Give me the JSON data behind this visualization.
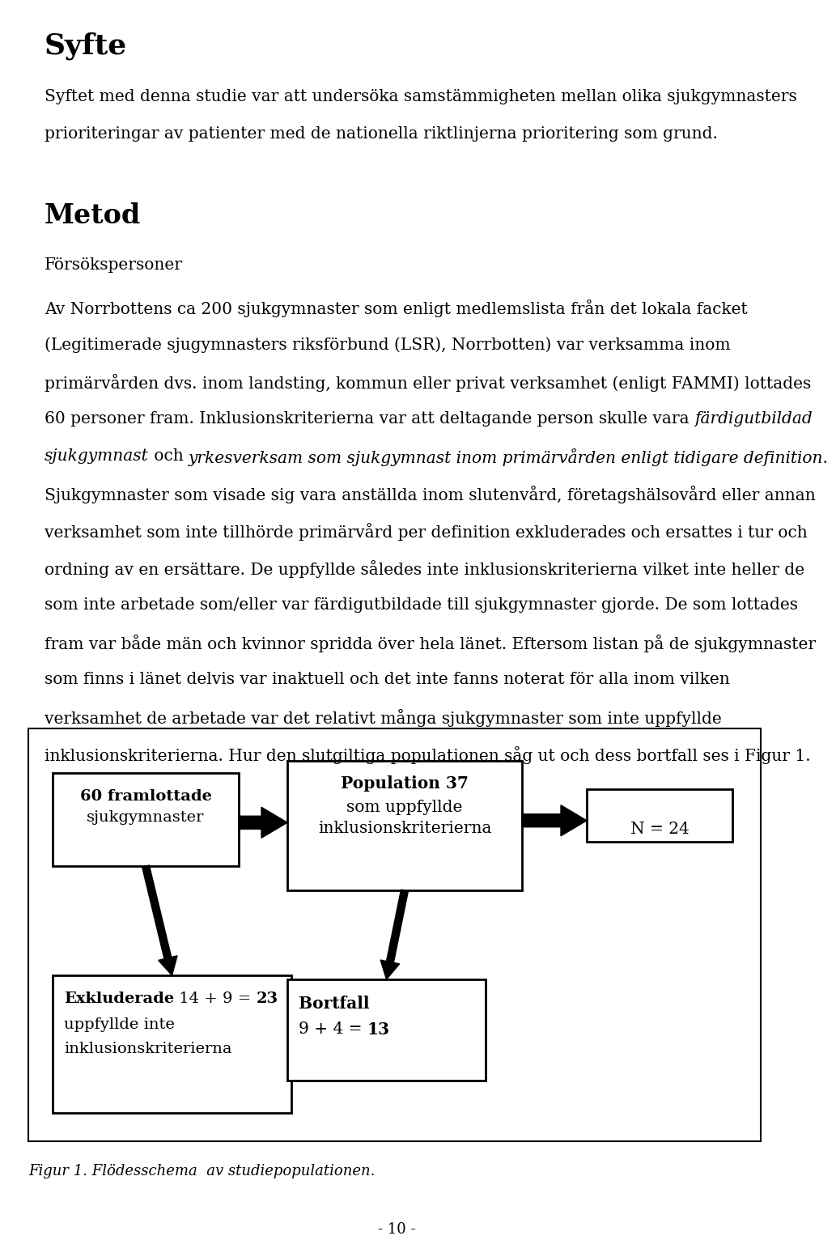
{
  "title_syfte": "Syfte",
  "title_metod": "Metod",
  "subtitle_metod": "Försökspersoner",
  "box1_line1": "60 framlottade",
  "box1_line2": "sjukgymnaster",
  "box2_line1": "Population 37",
  "box2_line2": "som uppfyllde",
  "box2_line3": "inklusionskriterierna",
  "box3_line1": "N = 24",
  "box4_bold": "Exkluderade",
  "box4_rest": " 14 + 9 = ",
  "box4_bold2": "23",
  "box4_line2": "uppfyllde inte",
  "box4_line3": "inklusionskriterierna",
  "box5_bold": "Bortfall",
  "box5_line2_pre": "9 + 4 = ",
  "box5_line2_bold": "13",
  "fig_caption": "Figur 1. Flödesschema  av studiepopulationen.",
  "page_num": "- 10 -",
  "bg_color": "#ffffff",
  "text_color": "#000000",
  "syfte_para_lines": [
    "Syftet med denna studie var att undersöka samstämmigheten mellan olika sjukgymnasters",
    "prioriteringar av patienter med de nationella riktlinjerna prioritering som grund."
  ],
  "metod_para_lines": [
    [
      "plain",
      "Av Norrbottens ca 200 sjukgymnaster som enligt medlemslista från det lokala facket"
    ],
    [
      "plain",
      "(Legitimerade sjugymnasters riksförbund (LSR), Norrbotten) var verksamma inom"
    ],
    [
      "plain",
      "primärvården dvs. inom landsting, kommun eller privat verksamhet (enligt FAMMI) lottades"
    ],
    [
      "mixed",
      "60 personer fram. Inklusionskriterierna var att deltagande person skulle vara ",
      "italic",
      "färdigutbildad"
    ],
    [
      "mixed_italic",
      "sjukgymnast",
      "plain",
      " och ",
      "italic",
      "yrkesverksam som sjukgymnast inom primärvården enligt tidigare definition."
    ],
    [
      "plain",
      "Sjukgymnaster som visade sig vara anställda inom slutenvård, företagshälsovård eller annan"
    ],
    [
      "plain",
      "verksamhet som inte tillhörde primärvård per definition exkluderades och ersattes i tur och"
    ],
    [
      "plain",
      "ordning av en ersättare. De uppfyllde således inte inklusionskriterierna vilket inte heller de"
    ],
    [
      "plain",
      "som inte arbetade som/eller var färdigutbildade till sjukgymnaster gjorde. De som lottades"
    ],
    [
      "plain",
      "fram var både män och kvinnor spridda över hela länet. Eftersom listan på de sjukgymnaster"
    ],
    [
      "plain",
      "som finns i länet delvis var inaktuell och det inte fanns noterat för alla inom vilken"
    ],
    [
      "plain",
      "verksamhet de arbetade var det relativt många sjukgymnaster som inte uppfyllde"
    ],
    [
      "plain",
      "inklusionskriterierna. Hur den slutgiltiga populationen såg ut och dess bortfall ses i Figur 1."
    ]
  ]
}
